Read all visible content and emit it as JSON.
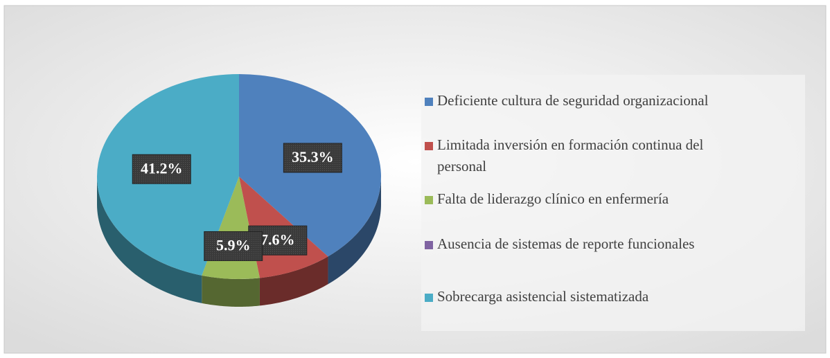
{
  "chart_data": {
    "type": "pie",
    "categories": [
      "Deficiente cultura de seguridad organizacional",
      "Limitada inversión en formación continua del personal",
      "Falta de liderazgo clínico en enfermería",
      "Ausencia de sistemas de reporte funcionales",
      "Sobrecarga asistencial sistematizada"
    ],
    "values": [
      35.3,
      7.6,
      5.9,
      0,
      41.2
    ],
    "value_labels": [
      "35.3%",
      "7.6%",
      "5.9%",
      null,
      "41.2%"
    ],
    "colors": [
      "#4f81bd",
      "#c0504d",
      "#9bbb59",
      "#8064a2",
      "#4bacc6"
    ],
    "legend": "right"
  }
}
